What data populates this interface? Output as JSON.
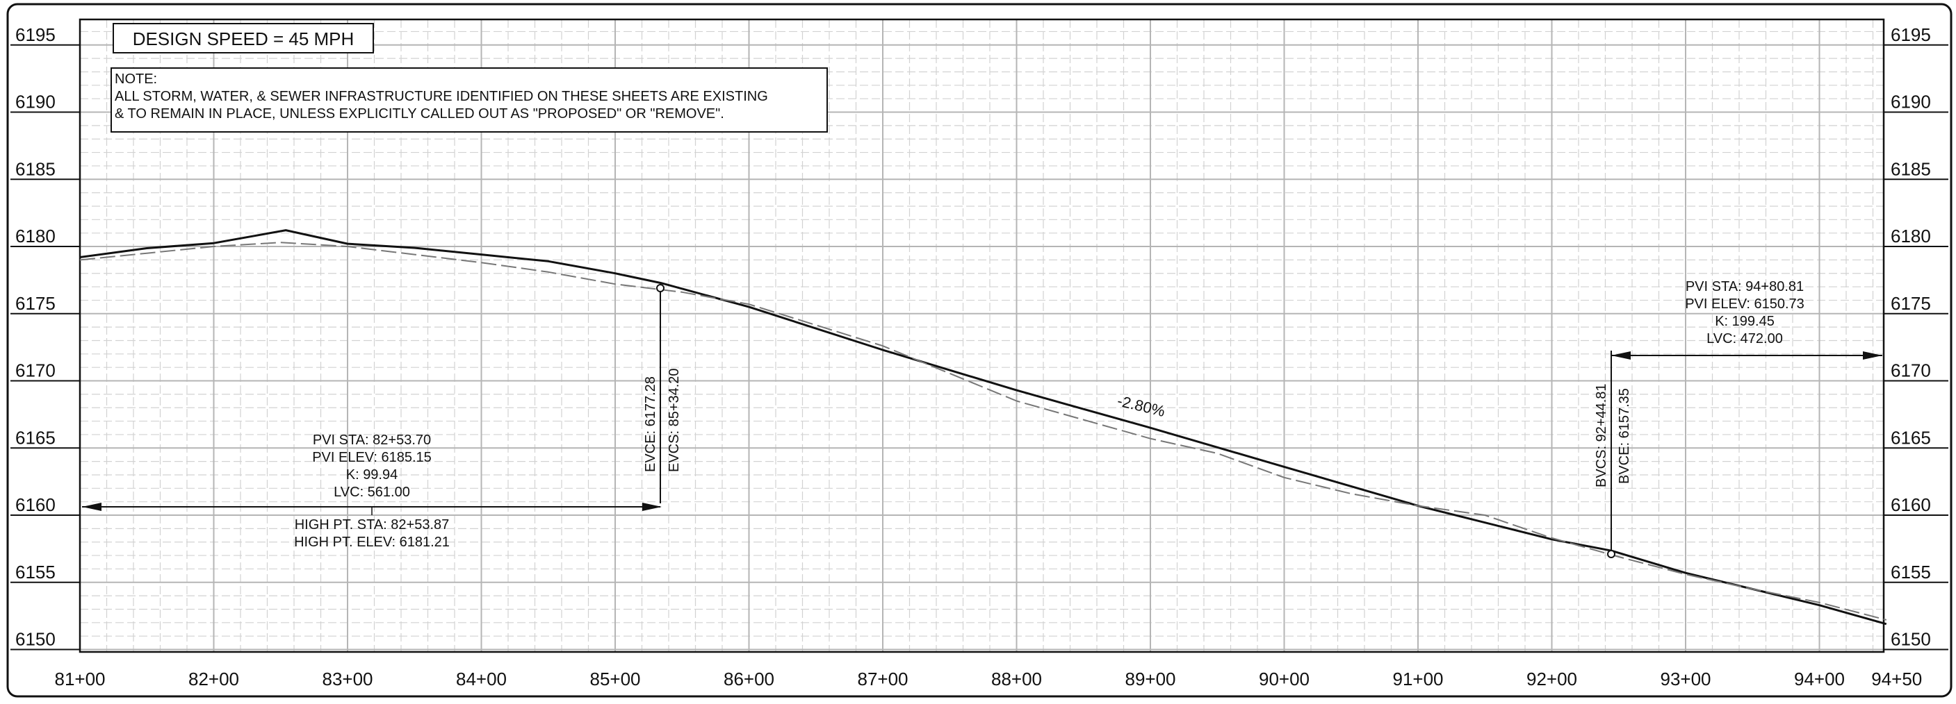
{
  "design_speed": "DESIGN SPEED = 45 MPH",
  "note": {
    "heading": "NOTE:",
    "line1": "ALL STORM, WATER, & SEWER INFRASTRUCTURE IDENTIFIED ON THESE SHEETS ARE EXISTING",
    "line2": "& TO REMAIN IN PLACE, UNLESS EXPLICITLY CALLED OUT AS \"PROPOSED\" OR \"REMOVE\"."
  },
  "elevation_ticks": [
    "6195",
    "6190",
    "6185",
    "6180",
    "6175",
    "6170",
    "6165",
    "6160",
    "6155",
    "6150"
  ],
  "station_ticks": [
    "81+00",
    "82+00",
    "83+00",
    "84+00",
    "85+00",
    "86+00",
    "87+00",
    "88+00",
    "89+00",
    "90+00",
    "91+00",
    "92+00",
    "93+00",
    "94+00",
    "94+50"
  ],
  "curve1": {
    "pvi_sta": "PVI STA: 82+53.70",
    "pvi_elev": "PVI ELEV: 6185.15",
    "k": "K: 99.94",
    "lvc": "LVC: 561.00",
    "high_pt_sta": "HIGH PT. STA: 82+53.87",
    "high_pt_elev": "HIGH PT. ELEV: 6181.21",
    "evce": "EVCE: 6177.28",
    "evcs": "EVCS: 85+34.20"
  },
  "curve2": {
    "pvi_sta": "PVI STA: 94+80.81",
    "pvi_elev": "PVI ELEV: 6150.73",
    "k": "K: 199.45",
    "lvc": "LVC: 472.00",
    "bvcs": "BVCS: 92+44.81",
    "bvce": "BVCE: 6157.35"
  },
  "grade_label": "-2.80%",
  "colors": {
    "line": "#111111",
    "grid_major": "#b5b5b5",
    "grid_minor": "#d2d2d2",
    "ground": "#777777"
  },
  "chart_data": {
    "type": "line",
    "x_unit": "station (ft)",
    "xlim": [
      8100,
      9450
    ],
    "ylim": [
      6150,
      6195
    ],
    "grid": true,
    "series": [
      {
        "values": [
          [
            8100,
            6179.2
          ],
          [
            8150,
            6179.87
          ],
          [
            8200,
            6180.25
          ],
          [
            8253.87,
            6181.21
          ],
          [
            8300,
            6180.2
          ],
          [
            8350,
            6179.9
          ],
          [
            8400,
            6179.4
          ],
          [
            8450,
            6178.9
          ],
          [
            8500,
            6178.0
          ],
          [
            8534.2,
            6177.28
          ],
          [
            8600,
            6175.5
          ],
          [
            8700,
            6172.3
          ],
          [
            8800,
            6169.3
          ],
          [
            8900,
            6166.5
          ],
          [
            9000,
            6163.6
          ],
          [
            9100,
            6160.7
          ],
          [
            9200,
            6158.2
          ],
          [
            9244.81,
            6157.35
          ],
          [
            9300,
            6155.7
          ],
          [
            9400,
            6153.3
          ],
          [
            9450,
            6151.9
          ]
        ]
      },
      {
        "values": [
          [
            8100,
            6179.0
          ],
          [
            8150,
            6179.5
          ],
          [
            8200,
            6180.0
          ],
          [
            8250,
            6180.3
          ],
          [
            8300,
            6180.0
          ],
          [
            8350,
            6179.4
          ],
          [
            8400,
            6178.8
          ],
          [
            8450,
            6178.1
          ],
          [
            8500,
            6177.2
          ],
          [
            8550,
            6176.6
          ],
          [
            8600,
            6175.7
          ],
          [
            8700,
            6172.6
          ],
          [
            8800,
            6168.5
          ],
          [
            8900,
            6165.7
          ],
          [
            8950,
            6164.6
          ],
          [
            9000,
            6162.8
          ],
          [
            9050,
            6161.6
          ],
          [
            9100,
            6160.7
          ],
          [
            9150,
            6160.0
          ],
          [
            9200,
            6158.3
          ],
          [
            9250,
            6156.9
          ],
          [
            9300,
            6155.6
          ],
          [
            9350,
            6154.5
          ],
          [
            9400,
            6153.5
          ],
          [
            9450,
            6152.2
          ]
        ]
      }
    ]
  }
}
